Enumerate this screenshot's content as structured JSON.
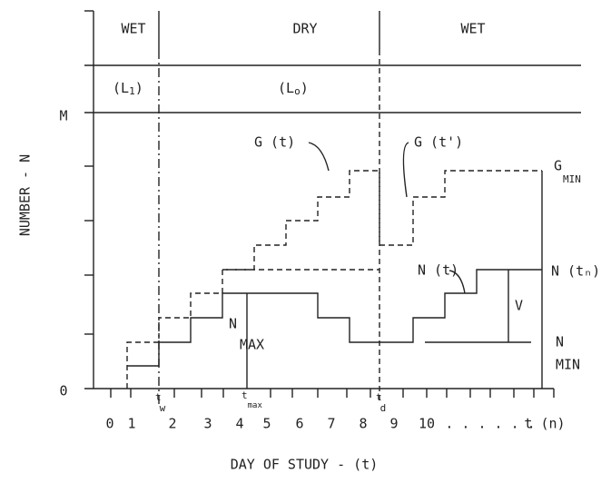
{
  "axes": {
    "y_title": "NUMBER - N",
    "x_title": "DAY OF STUDY - (t)",
    "y_labels": [
      "M",
      "0"
    ],
    "x_labels": [
      "0",
      "1",
      "2",
      "3",
      "4",
      "5",
      "6",
      "7",
      "8",
      "9",
      "10",
      ". . . . . .",
      "t (n)"
    ]
  },
  "periods": [
    {
      "label": "WET",
      "level": "(L",
      "sub": "1",
      "close": ")"
    },
    {
      "label": "DRY",
      "level": "(L",
      "sub": "o",
      "close": ")"
    },
    {
      "label": "WET"
    }
  ],
  "markers": [
    {
      "label": "t",
      "sub": "w"
    },
    {
      "label": "t",
      "sub": "max"
    },
    {
      "label": "t",
      "sub": "d"
    }
  ],
  "curves": {
    "g_t": "G (t)",
    "g_t_prime": "G (t')",
    "g_min": [
      "G",
      "MIN"
    ],
    "n_t": "N (t)",
    "n_tn": "N (tₙ)",
    "n_max": [
      "N",
      "MAX"
    ],
    "n_min": [
      "N",
      "MIN"
    ],
    "v": "V"
  }
}
